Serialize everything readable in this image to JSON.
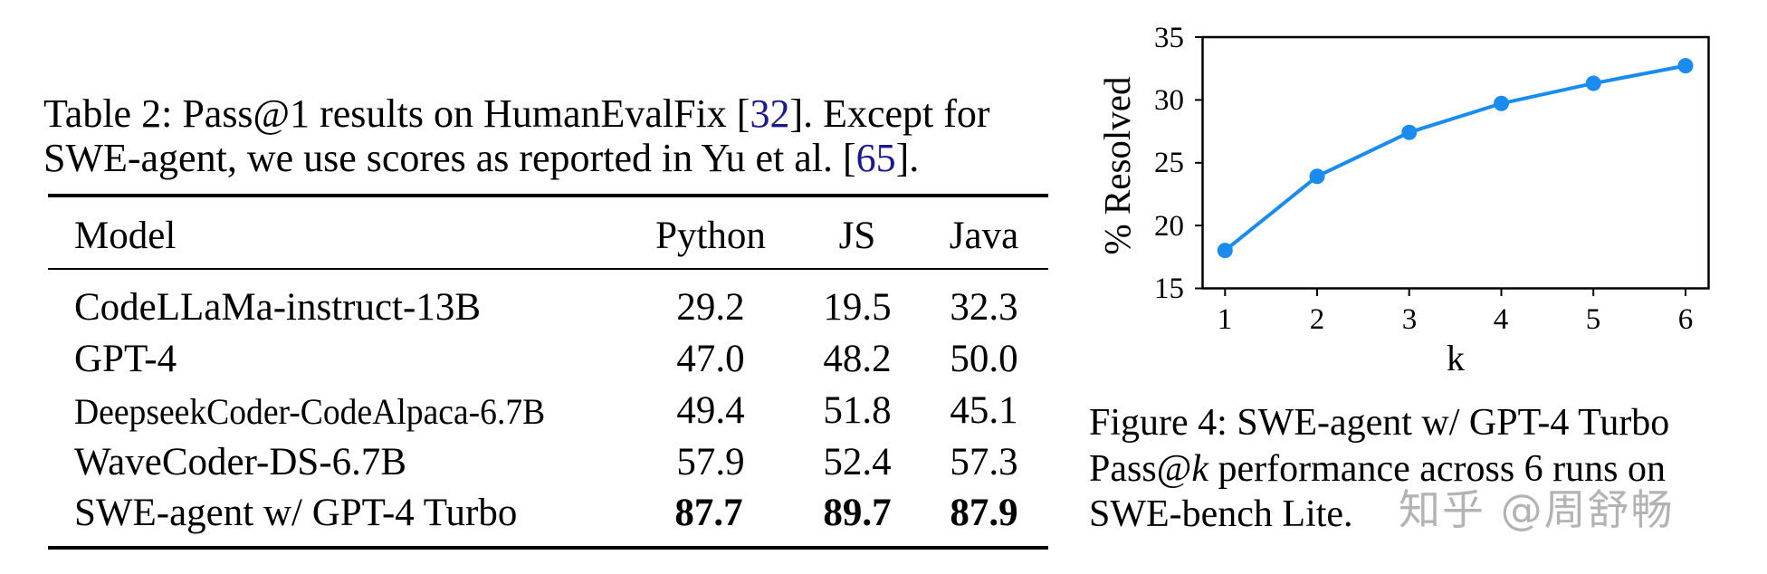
{
  "table_caption": {
    "line1_prefix": "Table 2: Pass@1 results on HumanEvalFix [",
    "line1_cite": "32",
    "line1_suffix": "]. Except for",
    "line2_prefix": "SWE-agent, we use scores as reported in Yu et al. [",
    "line2_cite": "65",
    "line2_suffix": "]."
  },
  "table": {
    "headers": [
      "Model",
      "Python",
      "JS",
      "Java"
    ],
    "rows": [
      {
        "model": "CodeLLaMa-instruct-13B",
        "python": "29.2",
        "js": "19.5",
        "java": "32.3",
        "bold": false
      },
      {
        "model": "GPT-4",
        "python": "47.0",
        "js": "48.2",
        "java": "50.0",
        "bold": false
      },
      {
        "model": "DeepseekCoder-CodeAlpaca-6.7B",
        "python": "49.4",
        "js": "51.8",
        "java": "45.1",
        "bold": false
      },
      {
        "model": "WaveCoder-DS-6.7B",
        "python": "57.9",
        "js": "52.4",
        "java": "57.3",
        "bold": false
      },
      {
        "model": "SWE-agent w/ GPT-4 Turbo",
        "python": "87.7",
        "js": "89.7",
        "java": "87.9",
        "bold": true
      }
    ]
  },
  "figure_caption": {
    "line1": "Figure 4: SWE-agent w/ GPT-4 Turbo",
    "line2_prefix": "Pass@",
    "line2_italic": "k",
    "line2_suffix": " performance across 6 runs on",
    "line3": "SWE-bench Lite."
  },
  "watermark": "知乎 @周舒畅",
  "colors": {
    "line": "#1a8cf0",
    "citation": "#1a1a8c",
    "watermark": "#b3b3b3"
  },
  "chart_data": {
    "type": "line",
    "title": "",
    "xlabel": "k",
    "ylabel": "% Resolved",
    "x": [
      1,
      2,
      3,
      4,
      5,
      6
    ],
    "values": [
      18.0,
      23.9,
      27.4,
      29.7,
      31.3,
      32.7
    ],
    "series": [
      {
        "name": "SWE-agent w/ GPT-4 Turbo",
        "values": [
          18.0,
          23.9,
          27.4,
          29.7,
          31.3,
          32.7
        ]
      }
    ],
    "xticks": [
      "1",
      "2",
      "3",
      "4",
      "5",
      "6"
    ],
    "yticks": [
      "15",
      "20",
      "25",
      "30",
      "35"
    ],
    "ylim": [
      15,
      35
    ],
    "grid": false,
    "legend": "none"
  }
}
